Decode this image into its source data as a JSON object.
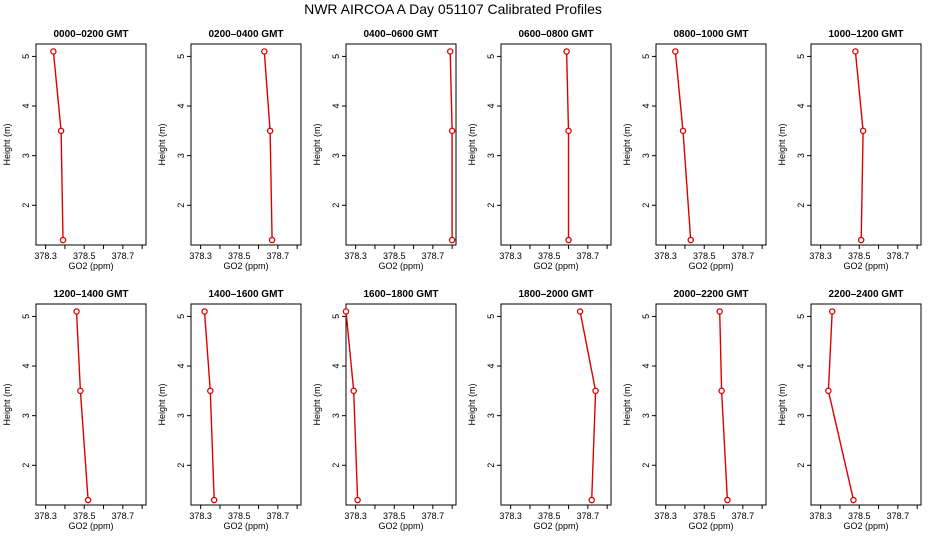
{
  "chart_data": {
    "type": "line",
    "title": "NWR AIRCOA A  Day 051107  Calibrated Profiles",
    "xlabel": "GO2 (ppm)",
    "ylabel": "Height (m)",
    "xlim": [
      378.25,
      378.82
    ],
    "ylim": [
      1.2,
      5.25
    ],
    "xticks": [
      378.3,
      378.4,
      378.5,
      378.6,
      378.7,
      378.8
    ],
    "xtick_labels": [
      "378.3",
      "",
      "378.5",
      "",
      "378.7",
      ""
    ],
    "yticks": [
      2,
      3,
      4,
      5
    ],
    "ytick_labels": [
      "2",
      "3",
      "4",
      "5"
    ],
    "panels": [
      {
        "title": "0000–0200 GMT",
        "points": [
          {
            "x": 378.39,
            "y": 1.3
          },
          {
            "x": 378.38,
            "y": 3.5
          },
          {
            "x": 378.34,
            "y": 5.1
          }
        ]
      },
      {
        "title": "0200–0400 GMT",
        "points": [
          {
            "x": 378.67,
            "y": 1.3
          },
          {
            "x": 378.66,
            "y": 3.5
          },
          {
            "x": 378.63,
            "y": 5.1
          }
        ]
      },
      {
        "title": "0400–0600 GMT",
        "points": [
          {
            "x": 378.8,
            "y": 1.3
          },
          {
            "x": 378.8,
            "y": 3.5
          },
          {
            "x": 378.79,
            "y": 5.1
          }
        ]
      },
      {
        "title": "0600–0800 GMT",
        "points": [
          {
            "x": 378.6,
            "y": 1.3
          },
          {
            "x": 378.6,
            "y": 3.5
          },
          {
            "x": 378.59,
            "y": 5.1
          }
        ]
      },
      {
        "title": "0800–1000 GMT",
        "points": [
          {
            "x": 378.43,
            "y": 1.3
          },
          {
            "x": 378.39,
            "y": 3.5
          },
          {
            "x": 378.35,
            "y": 5.1
          }
        ]
      },
      {
        "title": "1000–1200 GMT",
        "points": [
          {
            "x": 378.51,
            "y": 1.3
          },
          {
            "x": 378.52,
            "y": 3.5
          },
          {
            "x": 378.48,
            "y": 5.1
          }
        ]
      },
      {
        "title": "1200–1400 GMT",
        "points": [
          {
            "x": 378.52,
            "y": 1.3
          },
          {
            "x": 378.48,
            "y": 3.5
          },
          {
            "x": 378.46,
            "y": 5.1
          }
        ]
      },
      {
        "title": "1400–1600 GMT",
        "points": [
          {
            "x": 378.37,
            "y": 1.3
          },
          {
            "x": 378.35,
            "y": 3.5
          },
          {
            "x": 378.32,
            "y": 5.1
          }
        ]
      },
      {
        "title": "1600–1800 GMT",
        "points": [
          {
            "x": 378.31,
            "y": 1.3
          },
          {
            "x": 378.29,
            "y": 3.5
          },
          {
            "x": 378.25,
            "y": 5.1
          }
        ]
      },
      {
        "title": "1800–2000 GMT",
        "points": [
          {
            "x": 378.72,
            "y": 1.3
          },
          {
            "x": 378.74,
            "y": 3.5
          },
          {
            "x": 378.66,
            "y": 5.1
          }
        ]
      },
      {
        "title": "2000–2200 GMT",
        "points": [
          {
            "x": 378.62,
            "y": 1.3
          },
          {
            "x": 378.59,
            "y": 3.5
          },
          {
            "x": 378.58,
            "y": 5.1
          }
        ]
      },
      {
        "title": "2200–2400 GMT",
        "points": [
          {
            "x": 378.47,
            "y": 1.3
          },
          {
            "x": 378.34,
            "y": 3.5
          },
          {
            "x": 378.36,
            "y": 5.1
          }
        ]
      }
    ]
  }
}
